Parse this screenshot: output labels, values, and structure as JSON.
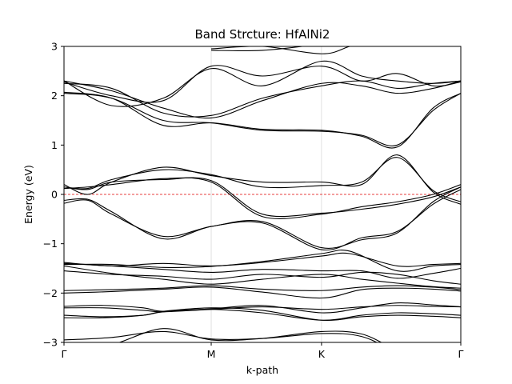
{
  "chart_data": {
    "type": "line",
    "title": "Band Strcture: HfAlNi2",
    "xlabel": "k-path",
    "ylabel": "Energy (eV)",
    "ylim": [
      -3,
      3
    ],
    "xlim": [
      0,
      1
    ],
    "yticks": [
      -3,
      -2,
      -1,
      0,
      1,
      2,
      3
    ],
    "kpoints": [
      {
        "label": "Γ",
        "x": 0
      },
      {
        "label": "M",
        "x": 0.371
      },
      {
        "label": "K",
        "x": 0.649
      },
      {
        "label": "Γ",
        "x": 1
      }
    ],
    "fermi_level": {
      "energy": 0,
      "color": "#e00000",
      "style": "dashed"
    },
    "band_color": "#000000",
    "grid": "vertical lines at high-symmetry k-points",
    "bands": [
      {
        "x": [
          0,
          0.12,
          0.25,
          0.371,
          0.5,
          0.649,
          0.75,
          0.84,
          0.93,
          1
        ],
        "y": [
          -2.95,
          -2.9,
          -2.78,
          -2.93,
          -2.92,
          -2.82,
          -2.88,
          -3.2,
          -3.4,
          -3.5
        ]
      },
      {
        "x": [
          0,
          0.12,
          0.25,
          0.371,
          0.5,
          0.649,
          0.75,
          0.84,
          0.93,
          1
        ],
        "y": [
          -3.2,
          -3.05,
          -2.72,
          -2.95,
          -2.92,
          -2.78,
          -2.83,
          -3.15,
          -3.3,
          -3.4
        ]
      },
      {
        "x": [
          0,
          0.1,
          0.2,
          0.25,
          0.371,
          0.5,
          0.649,
          0.75,
          0.84,
          0.93,
          1
        ],
        "y": [
          -2.45,
          -2.48,
          -2.45,
          -2.38,
          -2.33,
          -2.4,
          -2.55,
          -2.45,
          -2.4,
          -2.42,
          -2.45
        ]
      },
      {
        "x": [
          0,
          0.1,
          0.2,
          0.25,
          0.371,
          0.5,
          0.649,
          0.75,
          0.84,
          0.93,
          1
        ],
        "y": [
          -2.5,
          -2.5,
          -2.45,
          -2.37,
          -2.3,
          -2.35,
          -2.55,
          -2.48,
          -2.45,
          -2.47,
          -2.5
        ]
      },
      {
        "x": [
          0,
          0.1,
          0.2,
          0.25,
          0.371,
          0.5,
          0.649,
          0.75,
          0.84,
          0.93,
          1
        ],
        "y": [
          -2.27,
          -2.25,
          -2.3,
          -2.37,
          -2.32,
          -2.25,
          -2.4,
          -2.3,
          -2.2,
          -2.24,
          -2.28
        ]
      },
      {
        "x": [
          0,
          0.1,
          0.2,
          0.25,
          0.371,
          0.5,
          0.649,
          0.75,
          0.84,
          0.93,
          1
        ],
        "y": [
          -2.3,
          -2.3,
          -2.35,
          -2.38,
          -2.33,
          -2.28,
          -2.33,
          -2.28,
          -2.25,
          -2.27,
          -2.28
        ]
      },
      {
        "x": [
          0,
          0.12,
          0.25,
          0.371,
          0.5,
          0.649,
          0.75,
          0.84,
          0.93,
          1
        ],
        "y": [
          -2.0,
          -1.97,
          -1.92,
          -1.88,
          -1.98,
          -2.1,
          -1.93,
          -1.9,
          -1.92,
          -1.96
        ]
      },
      {
        "x": [
          0,
          0.12,
          0.25,
          0.371,
          0.5,
          0.649,
          0.75,
          0.84,
          0.93,
          1
        ],
        "y": [
          -1.95,
          -1.93,
          -1.9,
          -1.85,
          -1.92,
          -1.95,
          -1.88,
          -1.85,
          -1.88,
          -1.93
        ]
      },
      {
        "x": [
          0,
          0.12,
          0.25,
          0.371,
          0.5,
          0.649,
          0.75,
          0.84,
          0.93,
          1
        ],
        "y": [
          -1.45,
          -1.6,
          -1.72,
          -1.82,
          -1.72,
          -1.62,
          -1.72,
          -1.8,
          -1.87,
          -1.9
        ]
      },
      {
        "x": [
          0,
          0.12,
          0.25,
          0.371,
          0.5,
          0.649,
          0.75,
          0.84,
          0.93,
          1
        ],
        "y": [
          -1.55,
          -1.62,
          -1.66,
          -1.72,
          -1.62,
          -1.68,
          -1.58,
          -1.62,
          -1.75,
          -1.82
        ]
      },
      {
        "x": [
          0,
          0.12,
          0.25,
          0.371,
          0.5,
          0.649,
          0.75,
          0.84,
          0.93,
          1
        ],
        "y": [
          -1.4,
          -1.45,
          -1.52,
          -1.58,
          -1.52,
          -1.55,
          -1.55,
          -1.7,
          -1.6,
          -1.5
        ]
      },
      {
        "x": [
          0,
          0.12,
          0.25,
          0.371,
          0.5,
          0.649,
          0.72,
          0.84,
          0.93,
          1
        ],
        "y": [
          -1.42,
          -1.42,
          -1.48,
          -1.46,
          -1.36,
          -1.2,
          -1.15,
          -1.55,
          -1.45,
          -1.42
        ]
      },
      {
        "x": [
          0,
          0.12,
          0.25,
          0.371,
          0.5,
          0.649,
          0.72,
          0.84,
          0.93,
          1
        ],
        "y": [
          -1.38,
          -1.45,
          -1.4,
          -1.45,
          -1.38,
          -1.25,
          -1.2,
          -1.45,
          -1.42,
          -1.4
        ]
      },
      {
        "x": [
          0,
          0.06,
          0.12,
          0.25,
          0.371,
          0.5,
          0.649,
          0.75,
          0.84,
          0.93,
          1
        ],
        "y": [
          -0.12,
          -0.1,
          -0.35,
          -0.9,
          -0.65,
          -0.58,
          -1.12,
          -0.88,
          -0.75,
          -0.2,
          0.1
        ]
      },
      {
        "x": [
          0,
          0.06,
          0.12,
          0.25,
          0.371,
          0.5,
          0.649,
          0.75,
          0.84,
          0.93,
          1
        ],
        "y": [
          -0.18,
          -0.12,
          -0.4,
          -0.85,
          -0.65,
          -0.55,
          -1.08,
          -0.92,
          -0.78,
          -0.15,
          0.15
        ]
      },
      {
        "x": [
          0,
          0.06,
          0.12,
          0.25,
          0.371,
          0.5,
          0.649,
          0.75,
          0.84,
          0.93,
          1
        ],
        "y": [
          0.2,
          0.0,
          0.25,
          0.55,
          0.38,
          0.25,
          0.25,
          0.2,
          0.8,
          0.05,
          -0.2
        ]
      },
      {
        "x": [
          0,
          0.06,
          0.12,
          0.25,
          0.371,
          0.5,
          0.649,
          0.75,
          0.84,
          0.93,
          1
        ],
        "y": [
          0.15,
          0.12,
          0.3,
          0.5,
          0.4,
          0.15,
          0.18,
          0.25,
          0.75,
          0.08,
          -0.15
        ]
      },
      {
        "x": [
          0,
          0.06,
          0.12,
          0.25,
          0.371,
          0.5,
          0.649,
          0.75,
          0.84,
          0.93,
          1
        ],
        "y": [
          0.12,
          0.15,
          0.2,
          0.32,
          0.25,
          -0.45,
          -0.4,
          -0.25,
          -0.15,
          0.0,
          0.2
        ]
      },
      {
        "x": [
          0,
          0.06,
          0.12,
          0.25,
          0.371,
          0.5,
          0.649,
          0.75,
          0.84,
          0.93,
          1
        ],
        "y": [
          0.15,
          0.1,
          0.25,
          0.3,
          0.28,
          -0.4,
          -0.38,
          -0.3,
          -0.2,
          -0.05,
          0.15
        ]
      },
      {
        "x": [
          0,
          0.12,
          0.25,
          0.371,
          0.5,
          0.649,
          0.75,
          0.84,
          0.93,
          1
        ],
        "y": [
          2.05,
          1.95,
          1.5,
          1.45,
          1.3,
          1.28,
          1.2,
          1.0,
          1.7,
          2.05
        ]
      },
      {
        "x": [
          0,
          0.12,
          0.25,
          0.371,
          0.5,
          0.649,
          0.75,
          0.84,
          0.93,
          1
        ],
        "y": [
          2.07,
          1.95,
          1.4,
          1.45,
          1.32,
          1.3,
          1.18,
          0.96,
          1.75,
          2.05
        ]
      },
      {
        "x": [
          0,
          0.12,
          0.25,
          0.371,
          0.5,
          0.649,
          0.75,
          0.84,
          0.93,
          1
        ],
        "y": [
          2.25,
          2.15,
          1.65,
          1.6,
          1.95,
          2.2,
          2.3,
          2.15,
          2.25,
          2.3
        ]
      },
      {
        "x": [
          0,
          0.12,
          0.25,
          0.371,
          0.5,
          0.649,
          0.75,
          0.84,
          0.93,
          1
        ],
        "y": [
          2.3,
          2.1,
          1.75,
          1.55,
          1.9,
          2.25,
          2.2,
          2.05,
          2.15,
          2.3
        ]
      },
      {
        "x": [
          0,
          0.12,
          0.25,
          0.371,
          0.5,
          0.649,
          0.75,
          0.84,
          0.93,
          1
        ],
        "y": [
          2.28,
          2.0,
          1.9,
          2.6,
          2.4,
          2.6,
          2.3,
          2.45,
          2.2,
          2.28
        ]
      },
      {
        "x": [
          0,
          0.12,
          0.25,
          0.371,
          0.5,
          0.649,
          0.75,
          0.84,
          0.93,
          1
        ],
        "y": [
          2.3,
          1.8,
          1.95,
          2.55,
          2.2,
          2.7,
          2.4,
          2.3,
          2.25,
          2.3
        ]
      },
      {
        "x": [
          0.371,
          0.5,
          0.649,
          0.72,
          0.8
        ],
        "y": [
          2.95,
          3.0,
          2.85,
          3.0,
          3.2
        ]
      },
      {
        "x": [
          0.371,
          0.5,
          0.649,
          0.72
        ],
        "y": [
          2.92,
          2.92,
          3.05,
          3.15
        ]
      }
    ]
  }
}
